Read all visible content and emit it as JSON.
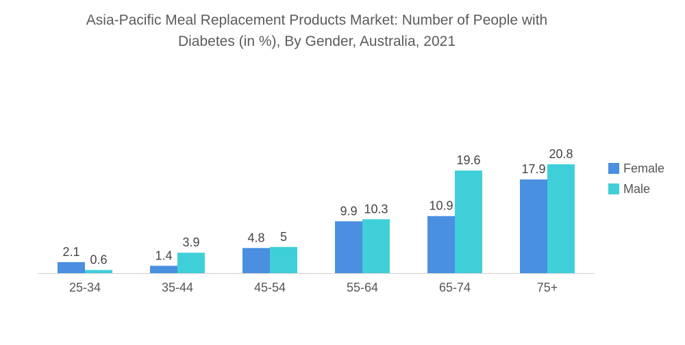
{
  "chart_data": {
    "type": "bar",
    "title_line1": "Asia-Pacific Meal Replacement Products Market: Number of People with",
    "title_line2": "Diabetes (in %), By Gender, Australia, 2021",
    "categories": [
      "25-34",
      "35-44",
      "45-54",
      "55-64",
      "65-74",
      "75+"
    ],
    "series": [
      {
        "name": "Female",
        "color": "#4a8fe0",
        "values": [
          2.1,
          1.4,
          4.8,
          9.9,
          10.9,
          17.9
        ],
        "labels": [
          "2.1",
          "1.4",
          "4.8",
          "9.9",
          "10.9",
          "17.9"
        ]
      },
      {
        "name": "Male",
        "color": "#3fcfd9",
        "values": [
          0.6,
          3.9,
          5,
          10.3,
          19.6,
          20.8
        ],
        "labels": [
          "0.6",
          "3.9",
          "5",
          "10.3",
          "19.6",
          "20.8"
        ]
      }
    ],
    "xlabel": "",
    "ylabel": "",
    "ylim": [
      0,
      20.8
    ],
    "grid": false,
    "legend": "right"
  }
}
